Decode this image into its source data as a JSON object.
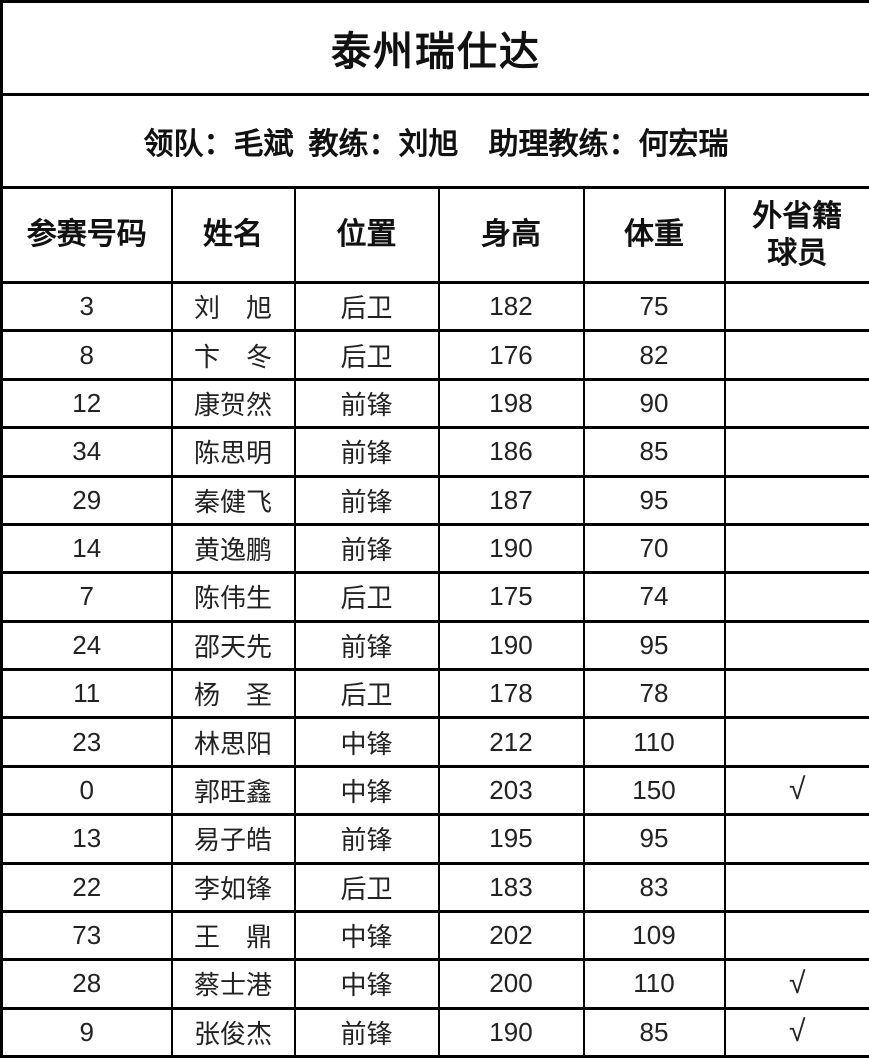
{
  "table": {
    "title": "泰州瑞仕达",
    "staff_line": "领队：毛斌  教练：刘旭    助理教练：何宏瑞",
    "columns": [
      {
        "label": "参赛号码",
        "lines": [
          "参赛号码"
        ]
      },
      {
        "label": "姓名",
        "lines": [
          "姓名"
        ]
      },
      {
        "label": "位置",
        "lines": [
          "位置"
        ]
      },
      {
        "label": "身高",
        "lines": [
          "身高"
        ]
      },
      {
        "label": "体重",
        "lines": [
          "体重"
        ]
      },
      {
        "label": "外省籍球员",
        "lines": [
          "外省籍",
          "球员"
        ]
      }
    ],
    "rows": [
      {
        "number": "3",
        "name": "刘　旭",
        "position": "后卫",
        "height": "182",
        "weight": "75",
        "out_province": ""
      },
      {
        "number": "8",
        "name": "卞　冬",
        "position": "后卫",
        "height": "176",
        "weight": "82",
        "out_province": ""
      },
      {
        "number": "12",
        "name": "康贺然",
        "position": "前锋",
        "height": "198",
        "weight": "90",
        "out_province": ""
      },
      {
        "number": "34",
        "name": "陈思明",
        "position": "前锋",
        "height": "186",
        "weight": "85",
        "out_province": ""
      },
      {
        "number": "29",
        "name": "秦健飞",
        "position": "前锋",
        "height": "187",
        "weight": "95",
        "out_province": ""
      },
      {
        "number": "14",
        "name": "黄逸鹏",
        "position": "前锋",
        "height": "190",
        "weight": "70",
        "out_province": ""
      },
      {
        "number": "7",
        "name": "陈伟生",
        "position": "后卫",
        "height": "175",
        "weight": "74",
        "out_province": ""
      },
      {
        "number": "24",
        "name": "邵天先",
        "position": "前锋",
        "height": "190",
        "weight": "95",
        "out_province": ""
      },
      {
        "number": "11",
        "name": "杨　圣",
        "position": "后卫",
        "height": "178",
        "weight": "78",
        "out_province": ""
      },
      {
        "number": "23",
        "name": "林思阳",
        "position": "中锋",
        "height": "212",
        "weight": "110",
        "out_province": ""
      },
      {
        "number": "0",
        "name": "郭旺鑫",
        "position": "中锋",
        "height": "203",
        "weight": "150",
        "out_province": "√"
      },
      {
        "number": "13",
        "name": "易子皓",
        "position": "前锋",
        "height": "195",
        "weight": "95",
        "out_province": ""
      },
      {
        "number": "22",
        "name": "李如锋",
        "position": "后卫",
        "height": "183",
        "weight": "83",
        "out_province": ""
      },
      {
        "number": "73",
        "name": "王　鼎",
        "position": "中锋",
        "height": "202",
        "weight": "109",
        "out_province": ""
      },
      {
        "number": "28",
        "name": "蔡士港",
        "position": "中锋",
        "height": "200",
        "weight": "110",
        "out_province": "√"
      },
      {
        "number": "9",
        "name": "张俊杰",
        "position": "前锋",
        "height": "190",
        "weight": "85",
        "out_province": "√"
      }
    ]
  }
}
